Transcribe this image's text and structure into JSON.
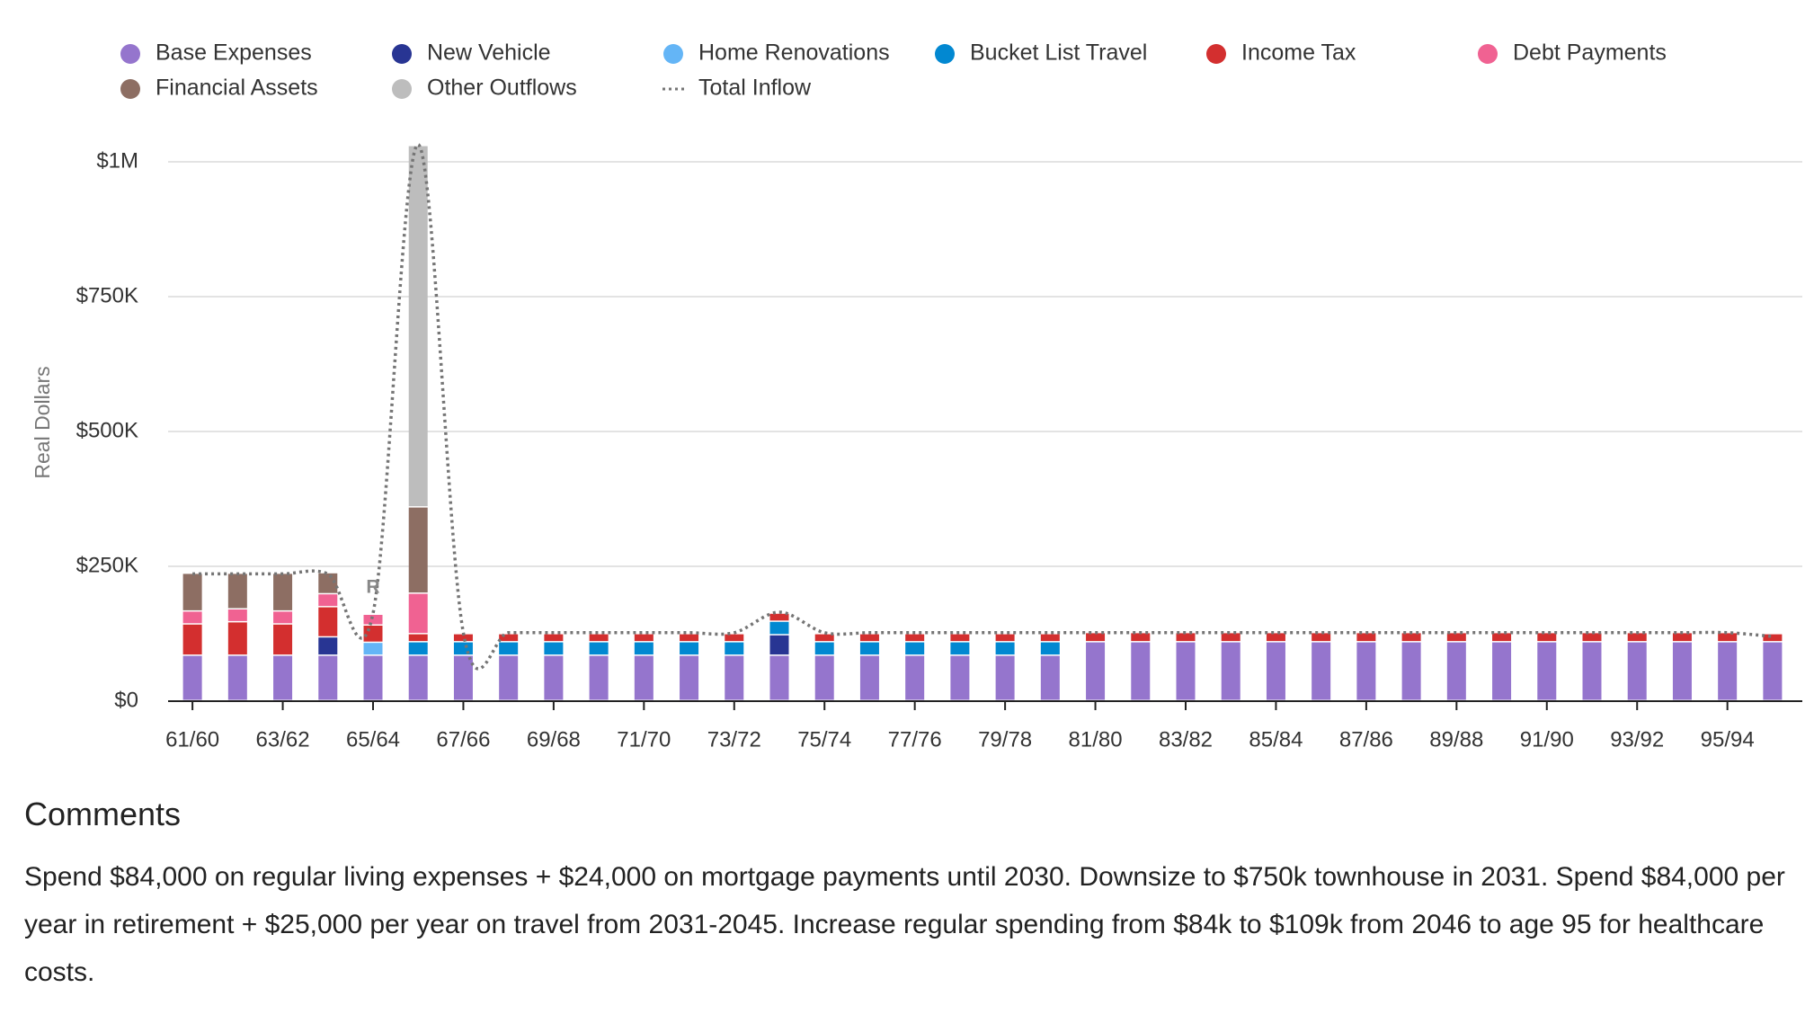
{
  "chart_data": {
    "type": "bar",
    "stacked": true,
    "y_label": "Real Dollars",
    "categories": [
      "61/60",
      null,
      "63/62",
      null,
      "65/64",
      null,
      "67/66",
      null,
      "69/68",
      null,
      "71/70",
      null,
      "73/72",
      null,
      "75/74",
      null,
      "77/76",
      null,
      "79/78",
      null,
      "81/80",
      null,
      "83/82",
      null,
      "85/84",
      null,
      "87/86",
      null,
      "89/88",
      null,
      "91/90",
      null,
      "93/92",
      null,
      "95/94",
      null
    ],
    "series": [
      {
        "name": "Base Expenses",
        "color": "#9575cd",
        "values": [
          84000,
          84000,
          84000,
          84000,
          84000,
          84000,
          84000,
          84000,
          84000,
          84000,
          84000,
          84000,
          84000,
          84000,
          84000,
          84000,
          84000,
          84000,
          84000,
          84000,
          109000,
          109000,
          109000,
          109000,
          109000,
          109000,
          109000,
          109000,
          109000,
          109000,
          109000,
          109000,
          109000,
          109000,
          109000,
          109000
        ]
      },
      {
        "name": "New Vehicle",
        "color": "#283593",
        "values": [
          0,
          0,
          0,
          34000,
          0,
          0,
          0,
          0,
          0,
          0,
          0,
          0,
          0,
          38000,
          0,
          0,
          0,
          0,
          0,
          0,
          0,
          0,
          0,
          0,
          0,
          0,
          0,
          0,
          0,
          0,
          0,
          0,
          0,
          0,
          0,
          0
        ]
      },
      {
        "name": "Home Renovations",
        "color": "#64b5f6",
        "values": [
          0,
          0,
          0,
          0,
          24000,
          0,
          0,
          0,
          0,
          0,
          0,
          0,
          0,
          0,
          0,
          0,
          0,
          0,
          0,
          0,
          0,
          0,
          0,
          0,
          0,
          0,
          0,
          0,
          0,
          0,
          0,
          0,
          0,
          0,
          0,
          0
        ]
      },
      {
        "name": "Bucket List Travel",
        "color": "#0288d1",
        "values": [
          0,
          0,
          0,
          0,
          0,
          25000,
          25000,
          25000,
          25000,
          25000,
          25000,
          25000,
          25000,
          25000,
          25000,
          25000,
          25000,
          25000,
          25000,
          25000,
          0,
          0,
          0,
          0,
          0,
          0,
          0,
          0,
          0,
          0,
          0,
          0,
          0,
          0,
          0,
          0
        ]
      },
      {
        "name": "Income Tax",
        "color": "#d32f2f",
        "values": [
          58000,
          62000,
          58000,
          56000,
          32000,
          15000,
          15000,
          15000,
          15000,
          15000,
          15000,
          15000,
          15000,
          15000,
          15000,
          15000,
          15000,
          15000,
          15000,
          15000,
          17000,
          17000,
          17000,
          17000,
          17000,
          17000,
          17000,
          17000,
          17000,
          17000,
          17000,
          17000,
          17000,
          17000,
          17000,
          15000
        ]
      },
      {
        "name": "Debt Payments",
        "color": "#f06292",
        "values": [
          24000,
          24000,
          24000,
          24000,
          20000,
          75000,
          0,
          0,
          0,
          0,
          0,
          0,
          0,
          0,
          0,
          0,
          0,
          0,
          0,
          0,
          0,
          0,
          0,
          0,
          0,
          0,
          0,
          0,
          0,
          0,
          0,
          0,
          0,
          0,
          0,
          0
        ]
      },
      {
        "name": "Financial Assets",
        "color": "#8d6e63",
        "values": [
          70000,
          66000,
          70000,
          39000,
          0,
          160000,
          0,
          0,
          0,
          0,
          0,
          0,
          0,
          0,
          0,
          0,
          0,
          0,
          0,
          0,
          0,
          0,
          0,
          0,
          0,
          0,
          0,
          0,
          0,
          0,
          0,
          0,
          0,
          0,
          0,
          0
        ]
      },
      {
        "name": "Other Outflows",
        "color": "#bdbdbd",
        "values": [
          0,
          0,
          0,
          0,
          0,
          670000,
          0,
          0,
          0,
          0,
          0,
          0,
          0,
          0,
          0,
          0,
          0,
          0,
          0,
          0,
          0,
          0,
          0,
          0,
          0,
          0,
          0,
          0,
          0,
          0,
          0,
          0,
          0,
          0,
          0,
          0
        ]
      },
      {
        "name": "Total Inflow",
        "type": "line",
        "line_style": "dotted",
        "color": "#757575",
        "values": [
          236000,
          236000,
          236000,
          236000,
          163000,
          1032000,
          127000,
          127000,
          127000,
          127000,
          127000,
          127000,
          127000,
          165000,
          127000,
          127000,
          127000,
          127000,
          127000,
          127000,
          127000,
          127000,
          127000,
          127000,
          127000,
          127000,
          127000,
          127000,
          127000,
          127000,
          127000,
          127000,
          127000,
          127000,
          127000,
          120000
        ]
      }
    ],
    "annotations": [
      {
        "text": "R",
        "category": "65/64"
      }
    ],
    "ylim": [
      0,
      1000000
    ],
    "yticks": [
      {
        "value": 0,
        "label": "$0"
      },
      {
        "value": 250000,
        "label": "$250K"
      },
      {
        "value": 500000,
        "label": "$500K"
      },
      {
        "value": 750000,
        "label": "$750K"
      },
      {
        "value": 1000000,
        "label": "$1M"
      }
    ],
    "grid": true,
    "legend": "top"
  },
  "comments": {
    "title": "Comments",
    "text": "Spend $84,000 on regular living expenses + $24,000 on mortgage payments until 2030. Downsize to $750k townhouse in 2031. Spend $84,000 per year in retirement + $25,000 per year on travel from 2031-2045. Increase regular spending from $84k to $109k from 2046 to age 95 for healthcare costs."
  }
}
